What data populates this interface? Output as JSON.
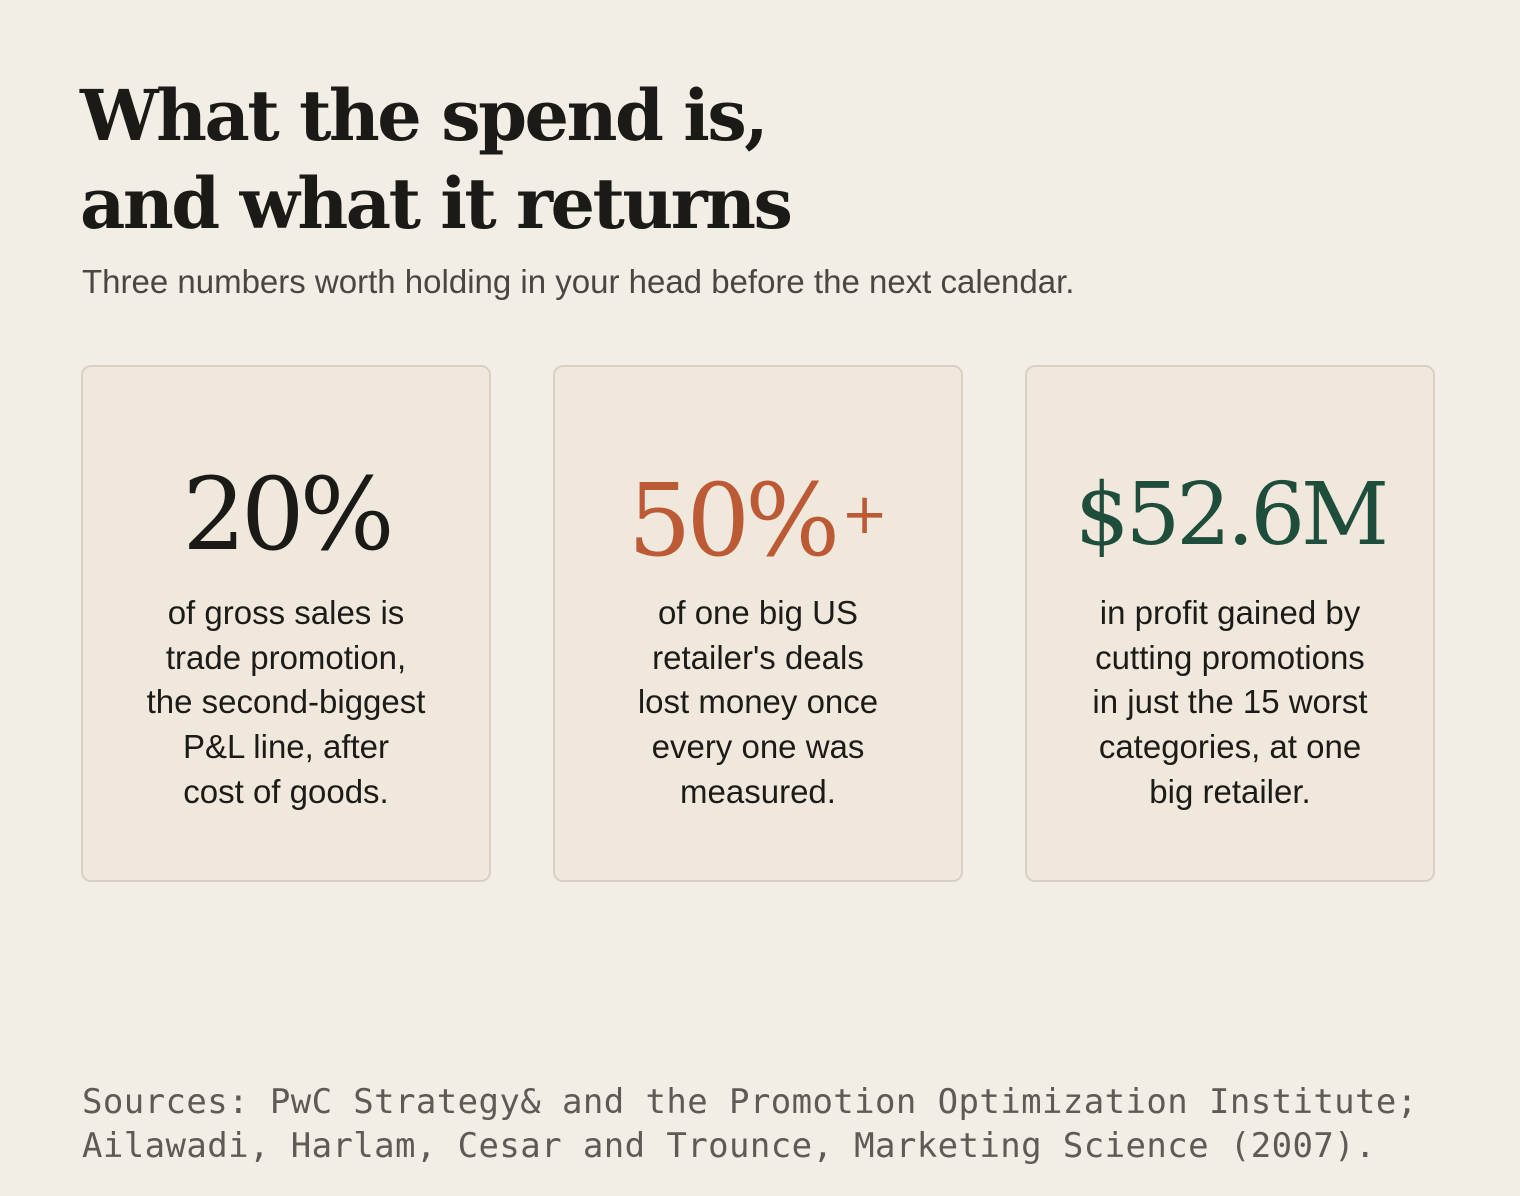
{
  "header": {
    "title_line_1": "What the spend is,",
    "title_line_2": "and what it returns",
    "subtitle": "Three numbers worth holding in your head before the next calendar."
  },
  "cards": [
    {
      "value": "20%",
      "suffix": "",
      "color": "#1b1a17",
      "description_lines": [
        "of gross sales is",
        "trade promotion,",
        "the second-biggest",
        "P&L line, after",
        "cost of goods."
      ]
    },
    {
      "value": "50%",
      "suffix": "+",
      "color": "#bc5a36",
      "description_lines": [
        "of one big US",
        "retailer's deals",
        "lost money once",
        "every one was",
        "measured."
      ]
    },
    {
      "value": "$52.6M",
      "suffix": "",
      "color": "#1f4d3c",
      "description_lines": [
        "in profit gained by",
        "cutting promotions",
        "in just the 15 worst",
        "categories, at one",
        "big retailer."
      ]
    }
  ],
  "sources": {
    "line_1": "Sources: PwC Strategy& and the Promotion Optimization Institute;",
    "line_2": "Ailawadi, Harlam, Cesar and Trounce, Marketing Science (2007)."
  }
}
